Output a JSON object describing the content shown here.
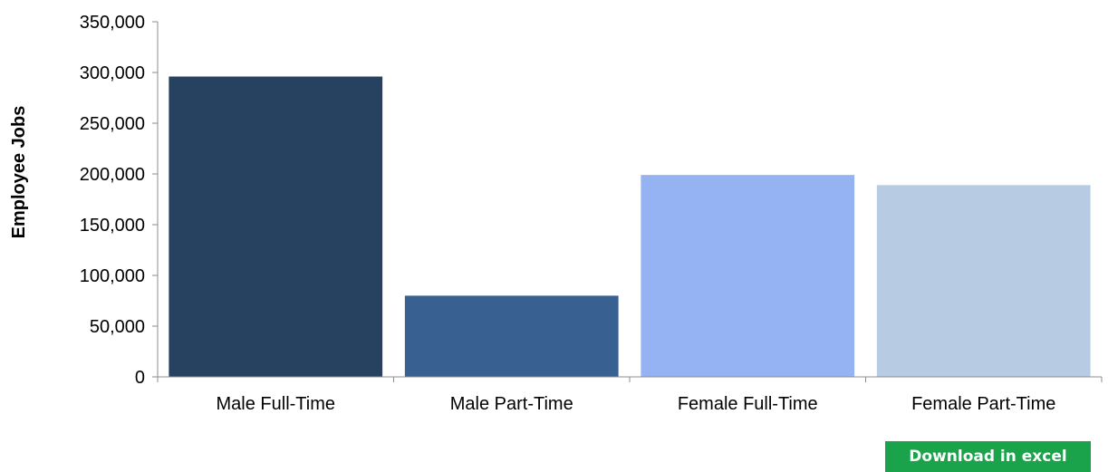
{
  "chart_data": {
    "type": "bar",
    "categories": [
      "Male Full-Time",
      "Male Part-Time",
      "Female Full-Time",
      "Female Part-Time"
    ],
    "values": [
      296000,
      80000,
      199000,
      189000
    ],
    "colors": [
      "#274260",
      "#386090",
      "#95b3f2",
      "#b7cce3"
    ],
    "title": "",
    "xlabel": "",
    "ylabel": "Employee Jobs",
    "ylim": [
      0,
      350000
    ],
    "yticks": [
      0,
      50000,
      100000,
      150000,
      200000,
      250000,
      300000,
      350000
    ],
    "ytick_labels": [
      "0",
      "50,000",
      "100,000",
      "150,000",
      "200,000",
      "250,000",
      "300,000",
      "350,000"
    ],
    "grid": false,
    "legend": "none"
  },
  "download": {
    "label": "Download in excel",
    "color": "#1aa34a"
  }
}
